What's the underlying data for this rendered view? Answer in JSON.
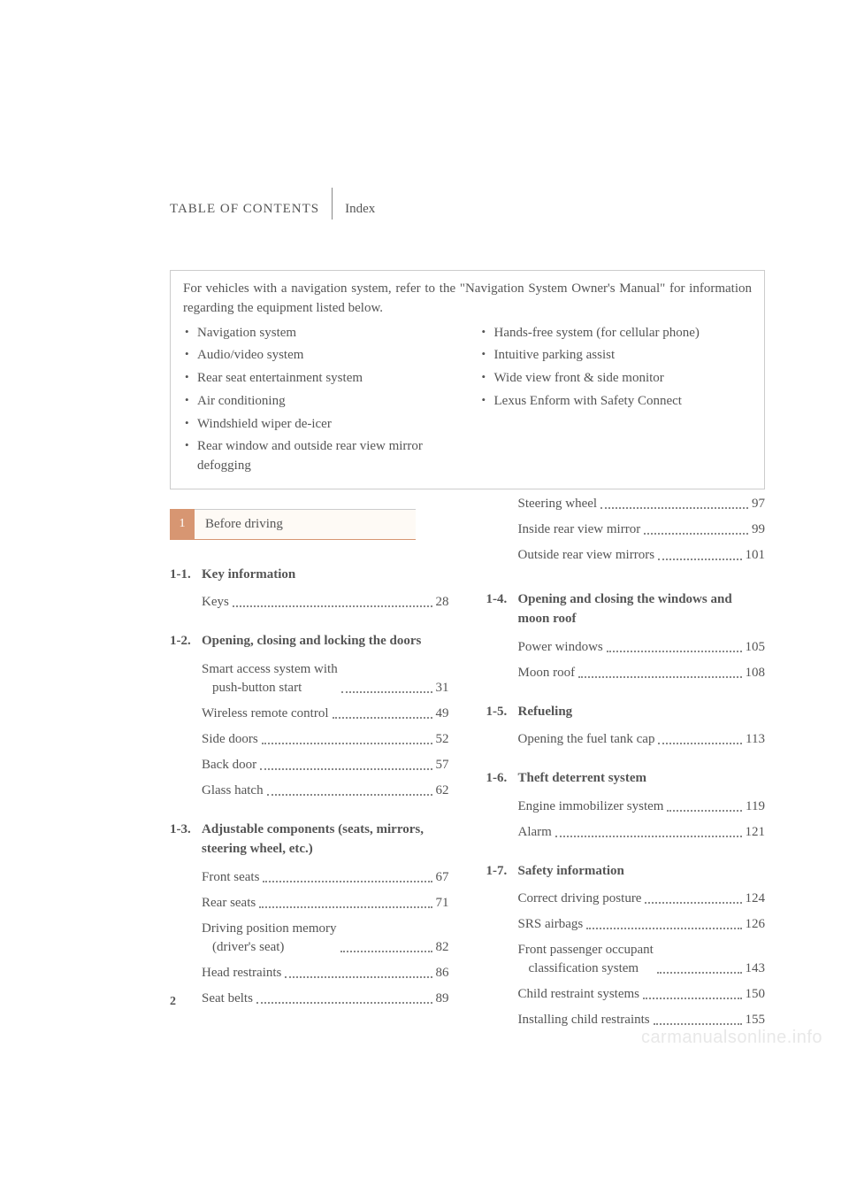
{
  "header": {
    "toc": "TABLE OF CONTENTS",
    "index": "Index"
  },
  "note": {
    "text": "For vehicles with a navigation system, refer to the \"Navigation System Owner's Manual\" for information regarding the equipment listed below.",
    "left_items": [
      "Navigation system",
      "Audio/video system",
      "Rear seat entertainment system",
      "Air conditioning",
      "Windshield wiper de-icer",
      "Rear window and outside rear view mirror defogging"
    ],
    "right_items": [
      "Hands-free system (for cellular phone)",
      "Intuitive parking assist",
      "Wide view front & side monitor",
      "Lexus Enform with Safety Connect"
    ]
  },
  "chapter": {
    "num": "1",
    "title": "Before driving"
  },
  "sections_left": [
    {
      "num": "1-1.",
      "title": "Key information",
      "entries": [
        {
          "label": "Keys",
          "page": "28"
        }
      ]
    },
    {
      "num": "1-2.",
      "title": "Opening, closing and locking the doors",
      "entries": [
        {
          "label": "Smart access system with",
          "sub": "push-button start",
          "page": "31"
        },
        {
          "label": "Wireless remote control",
          "page": "49"
        },
        {
          "label": "Side doors",
          "page": "52"
        },
        {
          "label": "Back door",
          "page": "57"
        },
        {
          "label": "Glass hatch",
          "page": "62"
        }
      ]
    },
    {
      "num": "1-3.",
      "title": "Adjustable components (seats, mirrors, steering wheel, etc.)",
      "entries": [
        {
          "label": "Front seats",
          "page": "67"
        },
        {
          "label": "Rear seats",
          "page": "71"
        },
        {
          "label": "Driving position memory",
          "sub": "(driver's seat)",
          "page": "82"
        },
        {
          "label": "Head restraints",
          "page": "86"
        },
        {
          "label": "Seat belts",
          "page": "89"
        }
      ]
    }
  ],
  "sections_right_pre": [
    {
      "label": "Steering wheel",
      "page": "97"
    },
    {
      "label": "Inside rear view mirror",
      "page": "99"
    },
    {
      "label": "Outside rear view mirrors",
      "page": "101"
    }
  ],
  "sections_right": [
    {
      "num": "1-4.",
      "title": "Opening and closing the windows and moon roof",
      "entries": [
        {
          "label": "Power windows",
          "page": "105"
        },
        {
          "label": "Moon roof",
          "page": "108"
        }
      ]
    },
    {
      "num": "1-5.",
      "title": "Refueling",
      "entries": [
        {
          "label": "Opening the fuel tank cap",
          "page": "113"
        }
      ]
    },
    {
      "num": "1-6.",
      "title": "Theft deterrent system",
      "entries": [
        {
          "label": "Engine immobilizer system",
          "page": "119"
        },
        {
          "label": "Alarm",
          "page": "121"
        }
      ]
    },
    {
      "num": "1-7.",
      "title": "Safety information",
      "entries": [
        {
          "label": "Correct driving posture",
          "page": "124"
        },
        {
          "label": "SRS airbags",
          "page": "126"
        },
        {
          "label": "Front passenger occupant",
          "sub": "classification system",
          "page": "143"
        },
        {
          "label": "Child restraint systems",
          "page": "150"
        },
        {
          "label": "Installing child restraints",
          "page": "155"
        }
      ]
    }
  ],
  "page_number": "2",
  "watermark": "carmanualsonline.info"
}
